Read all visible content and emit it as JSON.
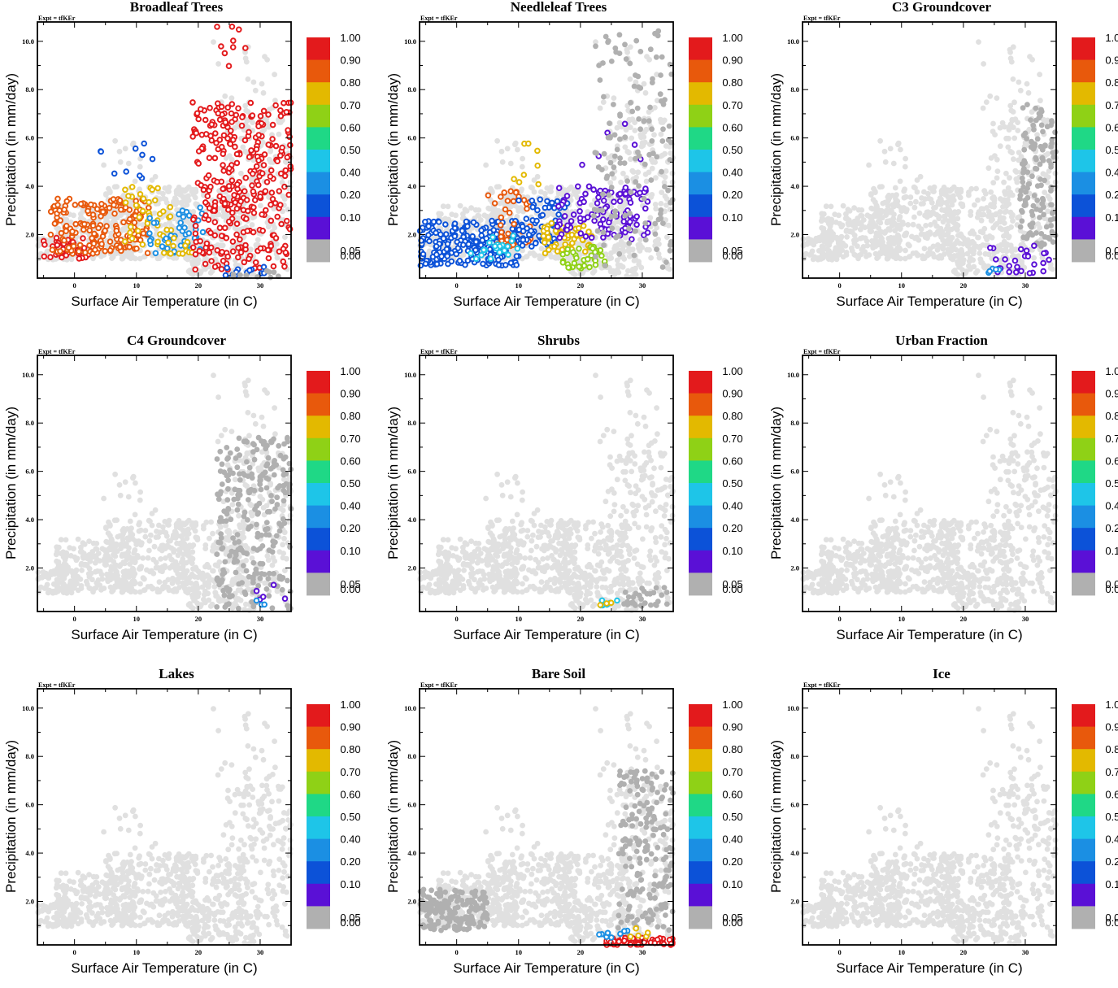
{
  "figure": {
    "experiment_label": "Expt = tfKEr",
    "xlabel": "Surface Air Temperature (in C)",
    "ylabel": "Precipitation (in mm/day)",
    "x_ticks": [
      "0",
      "10",
      "20",
      "30"
    ],
    "y_ticks": [
      "2.0",
      "4.0",
      "6.0",
      "8.0",
      "10.0"
    ],
    "colorbar_labels": [
      "1.00",
      "0.90",
      "0.80",
      "0.70",
      "0.60",
      "0.50",
      "0.40",
      "0.20",
      "0.10",
      "0.05",
      "0.00"
    ],
    "colorbar_colors": [
      "#e31a1c",
      "#e8590c",
      "#e3b900",
      "#8fd116",
      "#1fd886",
      "#1ec5e8",
      "#1b8fe3",
      "#0c52d8",
      "#5a10d6",
      "#b0b0b0"
    ],
    "below_min_color": "#e0e0e0"
  },
  "chart_data": [
    {
      "type": "scatter",
      "title": "Broadleaf Trees",
      "xlim": [
        -6,
        35
      ],
      "ylim": [
        0.2,
        10.8
      ],
      "regions": [
        {
          "x": [
            -5,
            3
          ],
          "y": [
            1.0,
            1.9
          ],
          "value": 0.95,
          "n": 45
        },
        {
          "x": [
            -4,
            12
          ],
          "y": [
            1.2,
            3.5
          ],
          "value": 0.85,
          "n": 170
        },
        {
          "x": [
            8,
            16
          ],
          "y": [
            1.5,
            4.0
          ],
          "value": 0.78,
          "n": 40
        },
        {
          "x": [
            12,
            21
          ],
          "y": [
            1.2,
            3.2
          ],
          "value": 0.3,
          "n": 45
        },
        {
          "x": [
            14,
            19
          ],
          "y": [
            1.2,
            2.0
          ],
          "value": 0.7,
          "n": 12
        },
        {
          "x": [
            19,
            35
          ],
          "y": [
            0.5,
            7.5
          ],
          "value": 0.95,
          "n": 330
        },
        {
          "x": [
            22,
            30
          ],
          "y": [
            6.0,
            10.7
          ],
          "value": 0.95,
          "n": 14
        },
        {
          "x": [
            4,
            13
          ],
          "y": [
            4.0,
            5.8
          ],
          "value": 0.18,
          "n": 10
        },
        {
          "x": [
            24,
            31
          ],
          "y": [
            0.3,
            0.8
          ],
          "value": 0.1,
          "n": 12
        },
        {
          "x": [
            25,
            34
          ],
          "y": [
            0.2,
            0.5
          ],
          "value": 0.0,
          "n": 10
        }
      ]
    },
    {
      "type": "scatter",
      "title": "Needleleaf Trees",
      "xlim": [
        -6,
        35
      ],
      "ylim": [
        0.2,
        10.8
      ],
      "regions": [
        {
          "x": [
            -6,
            10
          ],
          "y": [
            0.7,
            2.6
          ],
          "value": 0.15,
          "n": 230
        },
        {
          "x": [
            5,
            12
          ],
          "y": [
            1.5,
            3.8
          ],
          "value": 0.82,
          "n": 45
        },
        {
          "x": [
            10,
            18
          ],
          "y": [
            1.5,
            3.5
          ],
          "value": 0.12,
          "n": 70
        },
        {
          "x": [
            14,
            22
          ],
          "y": [
            1.2,
            2.5
          ],
          "value": 0.72,
          "n": 55
        },
        {
          "x": [
            17,
            24
          ],
          "y": [
            0.6,
            1.5
          ],
          "value": 0.6,
          "n": 35
        },
        {
          "x": [
            16,
            31
          ],
          "y": [
            1.8,
            4.0
          ],
          "value": 0.07,
          "n": 110
        },
        {
          "x": [
            20,
            30
          ],
          "y": [
            4.5,
            7.0
          ],
          "value": 0.07,
          "n": 6
        },
        {
          "x": [
            22,
            35
          ],
          "y": [
            0.3,
            10.5
          ],
          "value": 0.0,
          "n": 140
        },
        {
          "x": [
            8,
            14
          ],
          "y": [
            4.0,
            6.0
          ],
          "value": 0.75,
          "n": 8
        },
        {
          "x": [
            2,
            10
          ],
          "y": [
            1.0,
            2.0
          ],
          "value": 0.45,
          "n": 20
        }
      ]
    },
    {
      "type": "scatter",
      "title": "C3 Groundcover",
      "xlim": [
        -6,
        35
      ],
      "ylim": [
        0.2,
        10.8
      ],
      "regions": [
        {
          "x": [
            29,
            35
          ],
          "y": [
            1.5,
            7.4
          ],
          "value": 0.0,
          "n": 130
        },
        {
          "x": [
            24,
            34
          ],
          "y": [
            0.4,
            1.6
          ],
          "value": 0.07,
          "n": 28
        },
        {
          "x": [
            24,
            26
          ],
          "y": [
            0.4,
            0.8
          ],
          "value": 0.2,
          "n": 5
        }
      ]
    },
    {
      "type": "scatter",
      "title": "C4 Groundcover",
      "xlim": [
        -6,
        35
      ],
      "ylim": [
        0.2,
        10.8
      ],
      "regions": [
        {
          "x": [
            23,
            35
          ],
          "y": [
            0.3,
            7.4
          ],
          "value": 0.0,
          "n": 260
        },
        {
          "x": [
            29,
            35
          ],
          "y": [
            0.5,
            1.5
          ],
          "value": 0.07,
          "n": 5
        },
        {
          "x": [
            29,
            31
          ],
          "y": [
            0.4,
            0.7
          ],
          "value": 0.2,
          "n": 3
        }
      ]
    },
    {
      "type": "scatter",
      "title": "Shrubs",
      "xlim": [
        -6,
        35
      ],
      "ylim": [
        0.2,
        10.8
      ],
      "regions": [
        {
          "x": [
            27,
            34
          ],
          "y": [
            0.4,
            1.2
          ],
          "value": 0.0,
          "n": 30
        },
        {
          "x": [
            23,
            26
          ],
          "y": [
            0.4,
            0.7
          ],
          "value": 0.4,
          "n": 6
        },
        {
          "x": [
            23,
            25
          ],
          "y": [
            0.4,
            0.6
          ],
          "value": 0.7,
          "n": 3
        }
      ]
    },
    {
      "type": "scatter",
      "title": "Urban Fraction",
      "xlim": [
        -6,
        35
      ],
      "ylim": [
        0.2,
        10.8
      ],
      "regions": []
    },
    {
      "type": "scatter",
      "title": "Lakes",
      "xlim": [
        -6,
        35
      ],
      "ylim": [
        0.2,
        10.8
      ],
      "regions": []
    },
    {
      "type": "scatter",
      "title": "Bare Soil",
      "xlim": [
        -6,
        35
      ],
      "ylim": [
        0.2,
        10.8
      ],
      "regions": [
        {
          "x": [
            -6,
            5
          ],
          "y": [
            0.8,
            2.5
          ],
          "value": 0.0,
          "n": 190
        },
        {
          "x": [
            26,
            35
          ],
          "y": [
            0.5,
            7.4
          ],
          "value": 0.0,
          "n": 180
        },
        {
          "x": [
            24,
            35
          ],
          "y": [
            0.2,
            0.5
          ],
          "value": 0.95,
          "n": 60
        },
        {
          "x": [
            23,
            28
          ],
          "y": [
            0.5,
            0.8
          ],
          "value": 0.3,
          "n": 8
        },
        {
          "x": [
            28,
            31
          ],
          "y": [
            0.5,
            0.9
          ],
          "value": 0.72,
          "n": 5
        }
      ]
    },
    {
      "type": "scatter",
      "title": "Ice",
      "xlim": [
        -6,
        35
      ],
      "ylim": [
        0.2,
        10.8
      ],
      "regions": []
    }
  ]
}
